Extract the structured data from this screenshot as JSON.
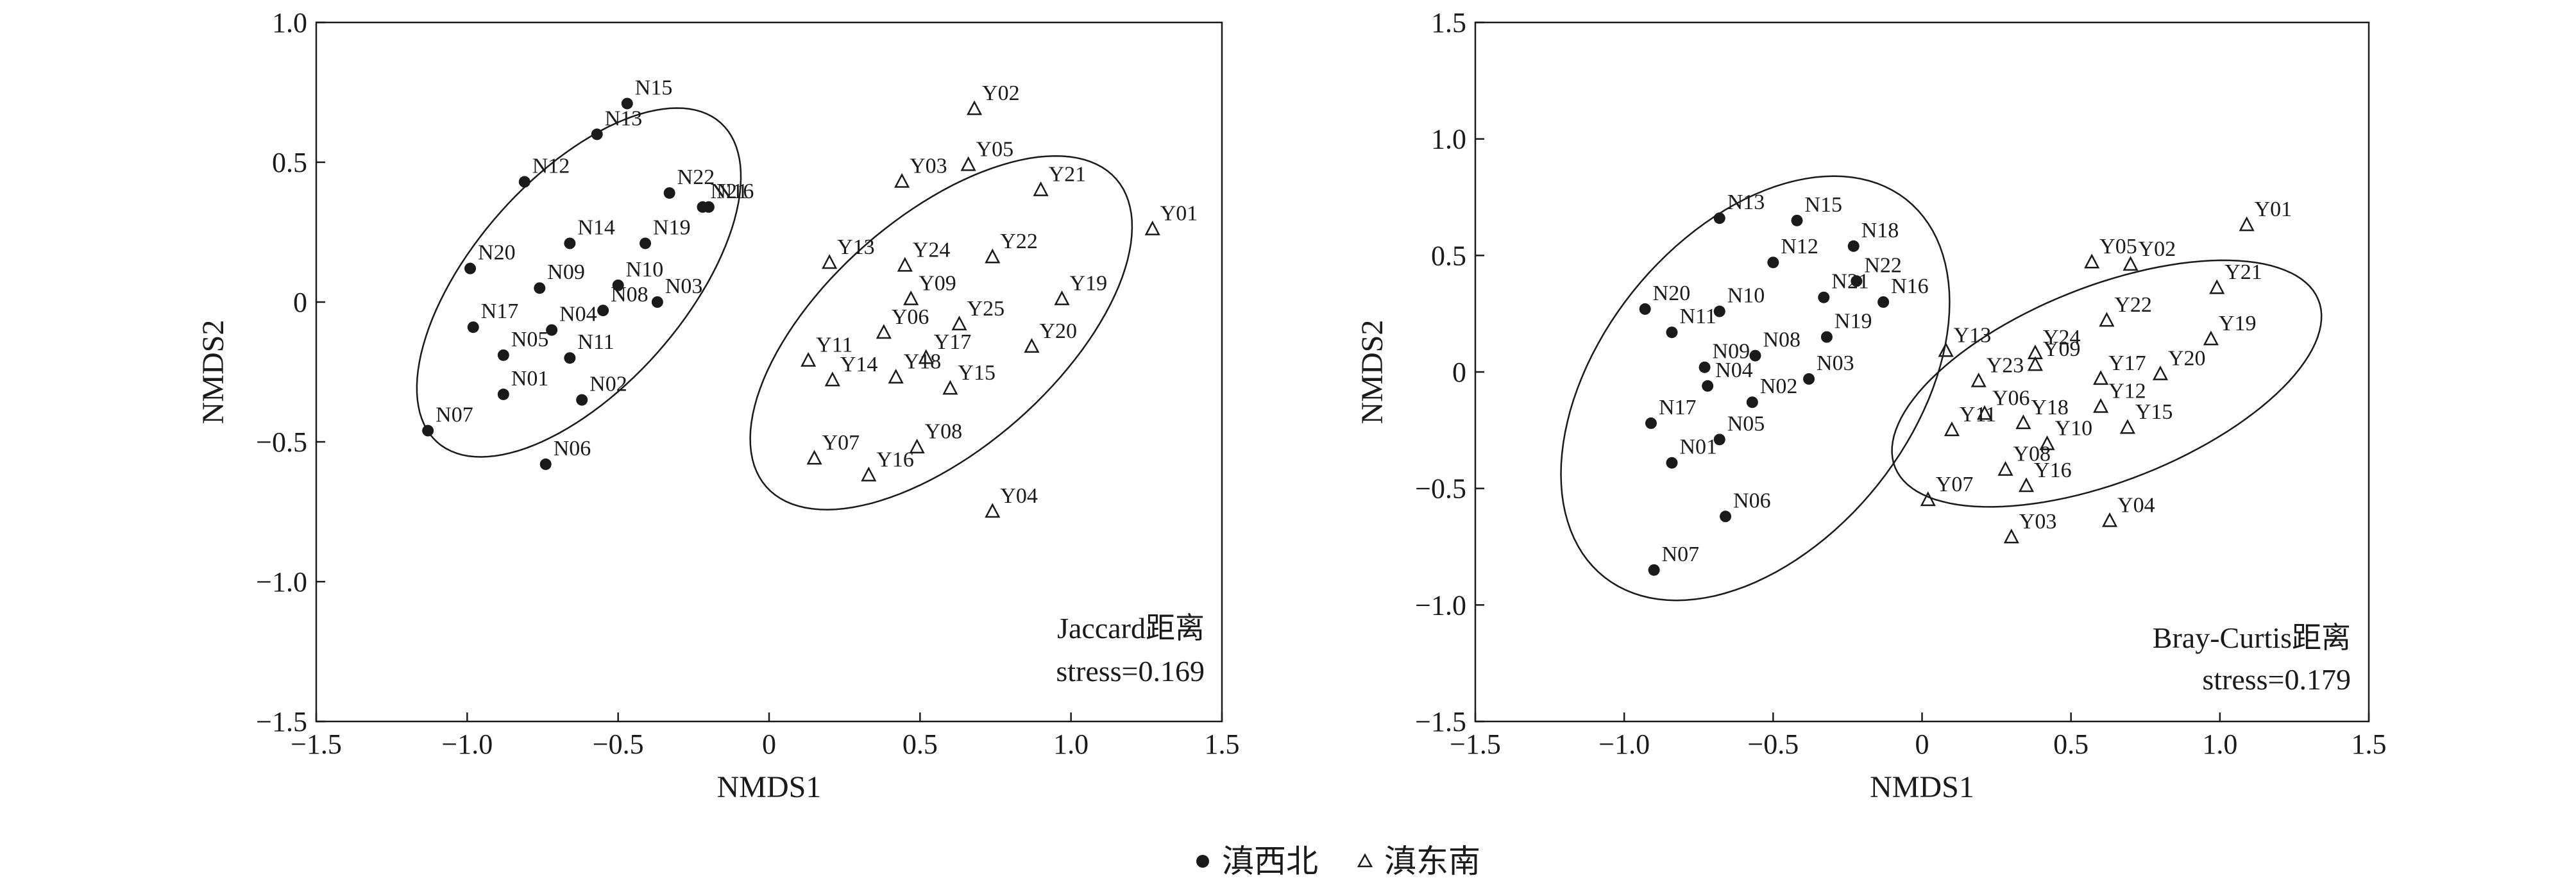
{
  "legend": {
    "items": [
      {
        "label": "滇西北",
        "marker": "dot"
      },
      {
        "label": "滇东南",
        "marker": "triangle"
      }
    ]
  },
  "colors": {
    "ink": "#1a1a1a",
    "background": "#ffffff"
  },
  "chart_data": [
    {
      "type": "scatter",
      "xlabel": "NMDS1",
      "ylabel": "NMDS2",
      "xlim": [
        -1.5,
        1.5
      ],
      "ylim": [
        -1.5,
        1.0
      ],
      "xticks": [
        -1.5,
        -1.0,
        -0.5,
        0,
        0.5,
        1.0,
        1.5
      ],
      "xtick_labels": [
        "−1.5",
        "−1.0",
        "−0.5",
        "0",
        "0.5",
        "1.0",
        "1.5"
      ],
      "yticks": [
        -1.5,
        -1.0,
        -0.5,
        0,
        0.5,
        1.0
      ],
      "ytick_labels": [
        "−1.5",
        "−1.0",
        "−0.5",
        "0",
        "0.5",
        "1.0"
      ],
      "grid": false,
      "annotation": [
        "Jaccard距离",
        "stress=0.169"
      ],
      "ellipses": [
        {
          "cx": -0.63,
          "cy": 0.07,
          "rx": 0.74,
          "ry": 0.36,
          "angle": 52
        },
        {
          "cx": 0.57,
          "cy": -0.11,
          "rx": 0.8,
          "ry": 0.4,
          "angle": 45
        }
      ],
      "series": [
        {
          "name": "滇西北",
          "marker": "dot",
          "points": [
            {
              "label": "N15",
              "x": -0.47,
              "y": 0.71
            },
            {
              "label": "N13",
              "x": -0.57,
              "y": 0.6
            },
            {
              "label": "N12",
              "x": -0.81,
              "y": 0.43
            },
            {
              "label": "N22",
              "x": -0.33,
              "y": 0.39
            },
            {
              "label": "N16",
              "x": -0.2,
              "y": 0.34
            },
            {
              "label": "N21",
              "x": -0.22,
              "y": 0.34
            },
            {
              "label": "N14",
              "x": -0.66,
              "y": 0.21
            },
            {
              "label": "N19",
              "x": -0.41,
              "y": 0.21
            },
            {
              "label": "N20",
              "x": -0.99,
              "y": 0.12
            },
            {
              "label": "N09",
              "x": -0.76,
              "y": 0.05
            },
            {
              "label": "N10",
              "x": -0.5,
              "y": 0.06
            },
            {
              "label": "N03",
              "x": -0.37,
              "y": 0.0
            },
            {
              "label": "N08",
              "x": -0.55,
              "y": -0.03
            },
            {
              "label": "N04",
              "x": -0.72,
              "y": -0.1
            },
            {
              "label": "N17",
              "x": -0.98,
              "y": -0.09
            },
            {
              "label": "N05",
              "x": -0.88,
              "y": -0.19
            },
            {
              "label": "N11",
              "x": -0.66,
              "y": -0.2
            },
            {
              "label": "N01",
              "x": -0.88,
              "y": -0.33
            },
            {
              "label": "N02",
              "x": -0.62,
              "y": -0.35
            },
            {
              "label": "N07",
              "x": -1.13,
              "y": -0.46
            },
            {
              "label": "N06",
              "x": -0.74,
              "y": -0.58
            }
          ]
        },
        {
          "name": "滇东南",
          "marker": "triangle",
          "points": [
            {
              "label": "Y02",
              "x": 0.68,
              "y": 0.69
            },
            {
              "label": "Y05",
              "x": 0.66,
              "y": 0.49
            },
            {
              "label": "Y03",
              "x": 0.44,
              "y": 0.43
            },
            {
              "label": "Y21",
              "x": 0.9,
              "y": 0.4
            },
            {
              "label": "Y01",
              "x": 1.27,
              "y": 0.26
            },
            {
              "label": "Y22",
              "x": 0.74,
              "y": 0.16
            },
            {
              "label": "Y13",
              "x": 0.2,
              "y": 0.14
            },
            {
              "label": "Y24",
              "x": 0.45,
              "y": 0.13
            },
            {
              "label": "Y09",
              "x": 0.47,
              "y": 0.01
            },
            {
              "label": "Y19",
              "x": 0.97,
              "y": 0.01
            },
            {
              "label": "Y06",
              "x": 0.38,
              "y": -0.11
            },
            {
              "label": "Y25",
              "x": 0.63,
              "y": -0.08
            },
            {
              "label": "Y20",
              "x": 0.87,
              "y": -0.16
            },
            {
              "label": "Y17",
              "x": 0.52,
              "y": -0.2
            },
            {
              "label": "Y11",
              "x": 0.13,
              "y": -0.21
            },
            {
              "label": "Y14",
              "x": 0.21,
              "y": -0.28
            },
            {
              "label": "Y18",
              "x": 0.42,
              "y": -0.27
            },
            {
              "label": "Y15",
              "x": 0.6,
              "y": -0.31
            },
            {
              "label": "Y07",
              "x": 0.15,
              "y": -0.56
            },
            {
              "label": "Y08",
              "x": 0.49,
              "y": -0.52
            },
            {
              "label": "Y16",
              "x": 0.33,
              "y": -0.62
            },
            {
              "label": "Y04",
              "x": 0.74,
              "y": -0.75
            }
          ]
        }
      ]
    },
    {
      "type": "scatter",
      "xlabel": "NMDS1",
      "ylabel": "NMDS2",
      "xlim": [
        -1.5,
        1.5
      ],
      "ylim": [
        -1.5,
        1.5
      ],
      "xticks": [
        -1.5,
        -1.0,
        -0.5,
        0,
        0.5,
        1.0,
        1.5
      ],
      "xtick_labels": [
        "−1.5",
        "−1.0",
        "−0.5",
        "0",
        "0.5",
        "1.0",
        "1.5"
      ],
      "yticks": [
        -1.5,
        -1.0,
        -0.5,
        0,
        0.5,
        1.0,
        1.5
      ],
      "ytick_labels": [
        "−1.5",
        "−1.0",
        "−0.5",
        "0",
        "0.5",
        "1.0",
        "1.5"
      ],
      "grid": false,
      "annotation": [
        "Bray-Curtis距离",
        "stress=0.179"
      ],
      "ellipses": [
        {
          "cx": -0.56,
          "cy": -0.07,
          "rx": 0.97,
          "ry": 0.56,
          "angle": 65
        },
        {
          "cx": 0.62,
          "cy": -0.05,
          "rx": 0.8,
          "ry": 0.4,
          "angle": 30
        }
      ],
      "series": [
        {
          "name": "滇西北",
          "marker": "dot",
          "points": [
            {
              "label": "N13",
              "x": -0.68,
              "y": 0.66
            },
            {
              "label": "N15",
              "x": -0.42,
              "y": 0.65
            },
            {
              "label": "N18",
              "x": -0.23,
              "y": 0.54
            },
            {
              "label": "N12",
              "x": -0.5,
              "y": 0.47
            },
            {
              "label": "N22",
              "x": -0.22,
              "y": 0.39
            },
            {
              "label": "N21",
              "x": -0.33,
              "y": 0.32
            },
            {
              "label": "N16",
              "x": -0.13,
              "y": 0.3
            },
            {
              "label": "N20",
              "x": -0.93,
              "y": 0.27
            },
            {
              "label": "N10",
              "x": -0.68,
              "y": 0.26
            },
            {
              "label": "N19",
              "x": -0.32,
              "y": 0.15
            },
            {
              "label": "N11",
              "x": -0.84,
              "y": 0.17
            },
            {
              "label": "N09",
              "x": -0.73,
              "y": 0.02
            },
            {
              "label": "N08",
              "x": -0.56,
              "y": 0.07
            },
            {
              "label": "N03",
              "x": -0.38,
              "y": -0.03
            },
            {
              "label": "N04",
              "x": -0.72,
              "y": -0.06
            },
            {
              "label": "N02",
              "x": -0.57,
              "y": -0.13
            },
            {
              "label": "N17",
              "x": -0.91,
              "y": -0.22
            },
            {
              "label": "N05",
              "x": -0.68,
              "y": -0.29
            },
            {
              "label": "N01",
              "x": -0.84,
              "y": -0.39
            },
            {
              "label": "N06",
              "x": -0.66,
              "y": -0.62
            },
            {
              "label": "N07",
              "x": -0.9,
              "y": -0.85
            }
          ]
        },
        {
          "name": "滇东南",
          "marker": "triangle",
          "points": [
            {
              "label": "Y01",
              "x": 1.09,
              "y": 0.63
            },
            {
              "label": "Y05",
              "x": 0.57,
              "y": 0.47
            },
            {
              "label": "Y02",
              "x": 0.7,
              "y": 0.46
            },
            {
              "label": "Y21",
              "x": 0.99,
              "y": 0.36
            },
            {
              "label": "Y22",
              "x": 0.62,
              "y": 0.22
            },
            {
              "label": "Y19",
              "x": 0.97,
              "y": 0.14
            },
            {
              "label": "Y13",
              "x": 0.08,
              "y": 0.09
            },
            {
              "label": "Y24",
              "x": 0.38,
              "y": 0.08
            },
            {
              "label": "Y09",
              "x": 0.38,
              "y": 0.03
            },
            {
              "label": "Y23",
              "x": 0.19,
              "y": -0.04
            },
            {
              "label": "Y17",
              "x": 0.6,
              "y": -0.03
            },
            {
              "label": "Y20",
              "x": 0.8,
              "y": -0.01
            },
            {
              "label": "Y06",
              "x": 0.21,
              "y": -0.18
            },
            {
              "label": "Y18",
              "x": 0.34,
              "y": -0.22
            },
            {
              "label": "Y12",
              "x": 0.6,
              "y": -0.15
            },
            {
              "label": "Y11",
              "x": 0.1,
              "y": -0.25
            },
            {
              "label": "Y10",
              "x": 0.42,
              "y": -0.31
            },
            {
              "label": "Y15",
              "x": 0.69,
              "y": -0.24
            },
            {
              "label": "Y07",
              "x": 0.02,
              "y": -0.55
            },
            {
              "label": "Y08",
              "x": 0.28,
              "y": -0.42
            },
            {
              "label": "Y16",
              "x": 0.35,
              "y": -0.49
            },
            {
              "label": "Y03",
              "x": 0.3,
              "y": -0.71
            },
            {
              "label": "Y04",
              "x": 0.63,
              "y": -0.64
            }
          ]
        }
      ]
    }
  ]
}
